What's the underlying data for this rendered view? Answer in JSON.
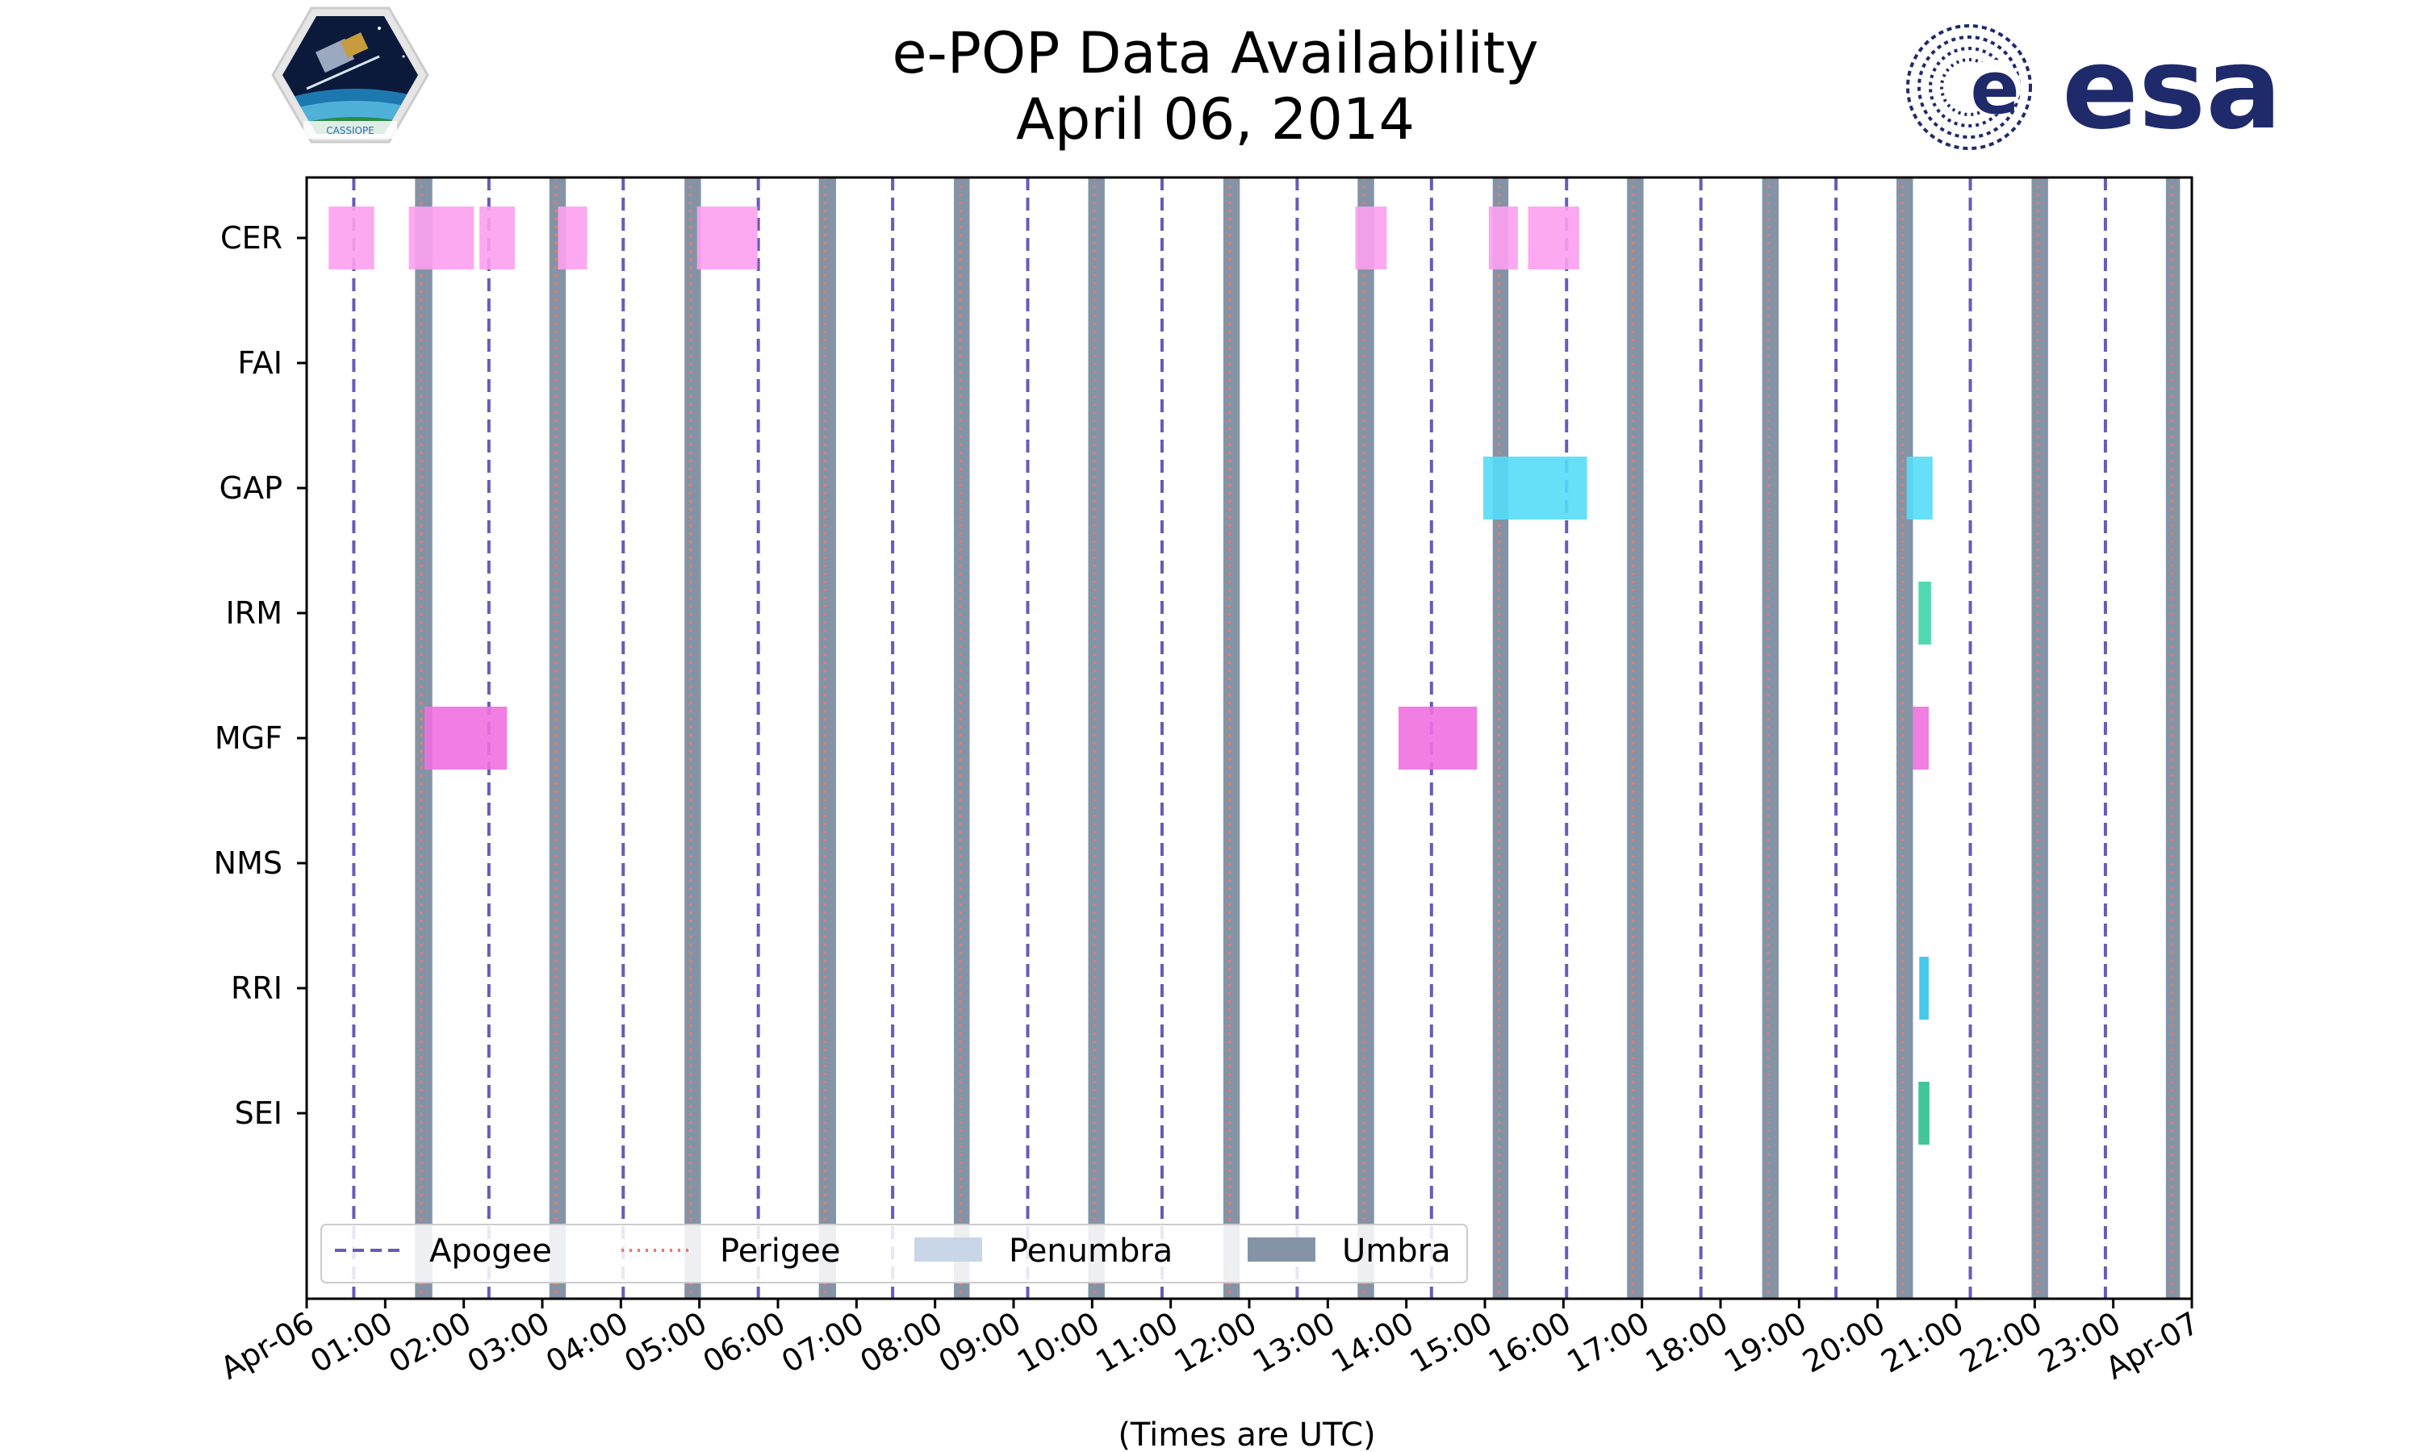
{
  "chart_data": {
    "type": "timeline",
    "title": "e-POP Data Availability",
    "subtitle": "April 06, 2014",
    "xlabel": "(Times are UTC)",
    "x_range_hours": [
      0,
      24
    ],
    "x_tick_labels": [
      "Apr-06",
      "01:00",
      "02:00",
      "03:00",
      "04:00",
      "05:00",
      "06:00",
      "07:00",
      "08:00",
      "09:00",
      "10:00",
      "11:00",
      "12:00",
      "13:00",
      "14:00",
      "15:00",
      "16:00",
      "17:00",
      "18:00",
      "19:00",
      "20:00",
      "21:00",
      "22:00",
      "23:00",
      "Apr-07"
    ],
    "instruments": [
      "CER",
      "FAI",
      "GAP",
      "IRM",
      "MGF",
      "NMS",
      "RRI",
      "SEI"
    ],
    "colors": {
      "CER": "#fca0f0",
      "GAP": "#55dcf8",
      "IRM": "#3dd6a8",
      "MGF": "#f070e0",
      "RRI": "#33c4e8",
      "SEI": "#2dbf8e",
      "apogee": "#6a5ab8",
      "perigee": "#ee7766",
      "umbra": "#8494a6",
      "penumbra": "#c8d6e8",
      "esa": "#1f2a6b"
    },
    "availability": [
      {
        "instrument": "CER",
        "intervals": [
          [
            0.28,
            0.86
          ],
          [
            1.3,
            2.13
          ],
          [
            2.2,
            2.65
          ],
          [
            3.2,
            3.57
          ],
          [
            4.97,
            5.74
          ],
          [
            13.35,
            13.75
          ],
          [
            15.05,
            15.42
          ],
          [
            15.55,
            16.2
          ]
        ]
      },
      {
        "instrument": "FAI",
        "intervals": []
      },
      {
        "instrument": "GAP",
        "intervals": [
          [
            14.98,
            16.3
          ],
          [
            20.37,
            20.7
          ]
        ]
      },
      {
        "instrument": "IRM",
        "intervals": [
          [
            20.52,
            20.68
          ]
        ]
      },
      {
        "instrument": "MGF",
        "intervals": [
          [
            1.5,
            2.55
          ],
          [
            13.9,
            14.9
          ],
          [
            20.45,
            20.65
          ]
        ]
      },
      {
        "instrument": "NMS",
        "intervals": []
      },
      {
        "instrument": "RRI",
        "intervals": [
          [
            20.53,
            20.65
          ]
        ]
      },
      {
        "instrument": "SEI",
        "intervals": [
          [
            20.52,
            20.66
          ]
        ]
      }
    ],
    "apogee_hours": [
      0.6,
      2.32,
      4.03,
      5.75,
      7.46,
      9.18,
      10.89,
      12.61,
      14.32,
      16.04,
      17.75,
      19.47,
      21.18,
      22.9
    ],
    "perigee_hours": [
      1.46,
      3.17,
      4.89,
      6.6,
      8.32,
      10.03,
      11.75,
      13.46,
      15.18,
      16.89,
      18.61,
      20.32,
      22.04,
      23.75
    ],
    "umbra_intervals": [
      [
        1.38,
        1.6
      ],
      [
        3.09,
        3.3
      ],
      [
        4.81,
        5.02
      ],
      [
        6.52,
        6.74
      ],
      [
        8.24,
        8.44
      ],
      [
        9.95,
        10.16
      ],
      [
        11.67,
        11.88
      ],
      [
        13.38,
        13.59
      ],
      [
        15.1,
        15.3
      ],
      [
        16.81,
        17.02
      ],
      [
        18.53,
        18.74
      ],
      [
        20.24,
        20.45
      ],
      [
        21.96,
        22.17
      ],
      [
        23.67,
        23.85
      ]
    ],
    "legend": [
      {
        "label": "Apogee",
        "style": "dashed"
      },
      {
        "label": "Perigee",
        "style": "dotted"
      },
      {
        "label": "Penumbra",
        "style": "patch-light"
      },
      {
        "label": "Umbra",
        "style": "patch-dark"
      }
    ]
  },
  "logos": {
    "left": {
      "name": "CASSIOPE",
      "text": "CASSIOPE"
    },
    "right": {
      "name": "esa",
      "text": "esa"
    }
  }
}
